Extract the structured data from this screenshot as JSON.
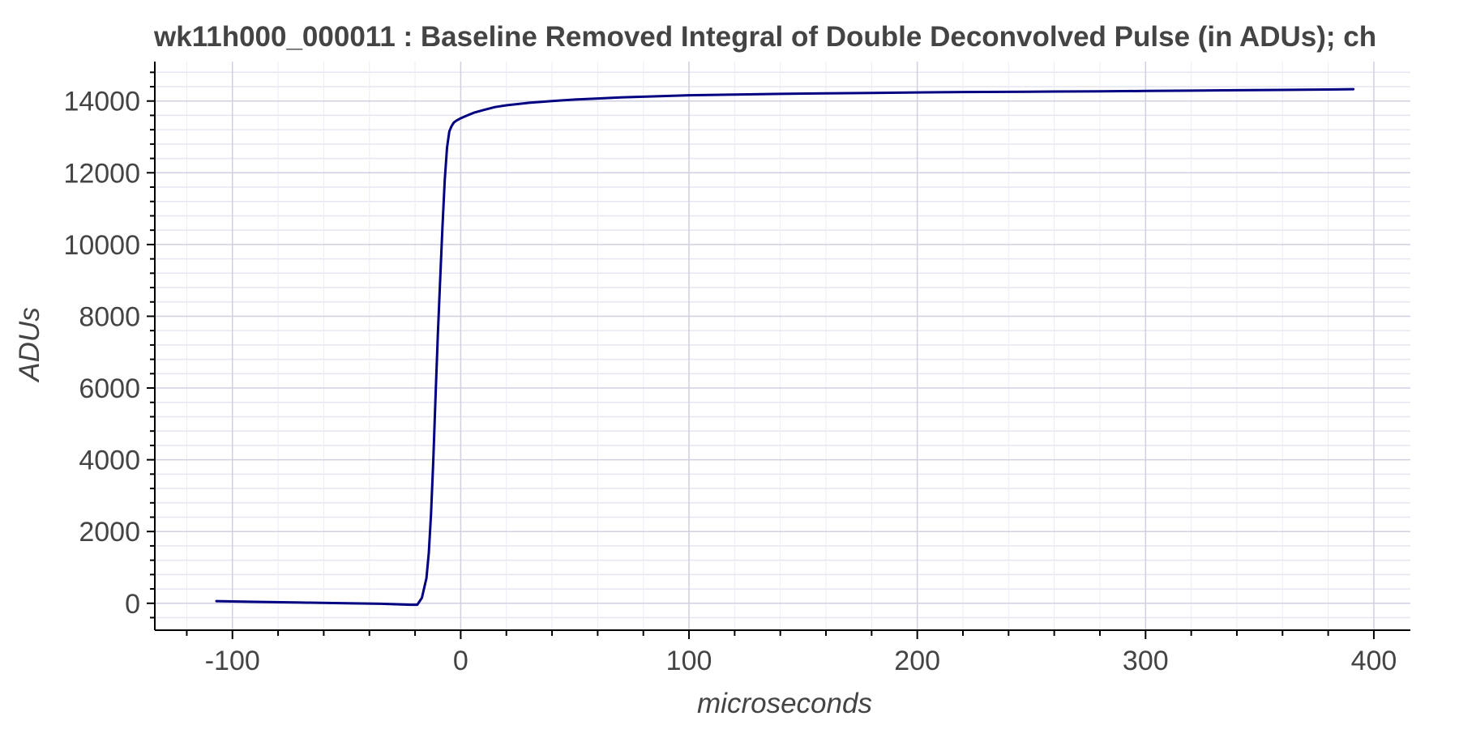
{
  "chart_data": {
    "type": "line",
    "title": "wk11h000_000011 : Baseline Removed Integral of Double Deconvolved Pulse (in ADUs); ch",
    "xlabel": "microseconds",
    "ylabel": "ADUs",
    "xlim": [
      -134,
      416
    ],
    "ylim": [
      -750,
      15100
    ],
    "x_ticks": [
      -100,
      0,
      100,
      200,
      300,
      400
    ],
    "y_ticks": [
      0,
      2000,
      4000,
      6000,
      8000,
      10000,
      12000,
      14000
    ],
    "x_tick_labels": [
      "-100",
      "0",
      "100",
      "200",
      "300",
      "400"
    ],
    "y_tick_labels": [
      "0",
      "2000",
      "4000",
      "6000",
      "8000",
      "10000",
      "12000",
      "14000"
    ],
    "grid": true,
    "series": [
      {
        "color": "#000080",
        "x": [
          -107,
          -90,
          -70,
          -50,
          -35,
          -22,
          -19,
          -17,
          -15,
          -14,
          -13,
          -12,
          -11,
          -10,
          -9,
          -8,
          -7,
          -6,
          -5,
          -4,
          -3,
          -2,
          0,
          3,
          6,
          10,
          15,
          20,
          30,
          40,
          50,
          60,
          70,
          80,
          90,
          100,
          120,
          140,
          160,
          180,
          200,
          220,
          240,
          260,
          280,
          300,
          320,
          340,
          360,
          380,
          391
        ],
        "y": [
          60,
          40,
          20,
          0,
          -15,
          -40,
          -40,
          150,
          700,
          1400,
          2500,
          4000,
          5800,
          7500,
          9000,
          10500,
          11800,
          12700,
          13150,
          13300,
          13400,
          13450,
          13520,
          13600,
          13680,
          13750,
          13830,
          13880,
          13950,
          14000,
          14040,
          14070,
          14100,
          14120,
          14140,
          14160,
          14180,
          14200,
          14215,
          14225,
          14240,
          14250,
          14255,
          14265,
          14270,
          14280,
          14290,
          14300,
          14310,
          14320,
          14330
        ]
      }
    ]
  }
}
